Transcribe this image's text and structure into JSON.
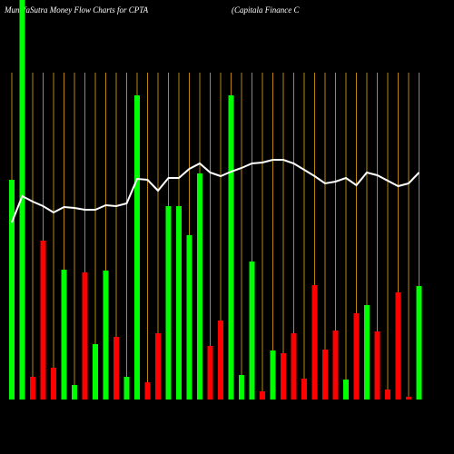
{
  "chart_data": {
    "type": "bar",
    "title": "MunafaSutra  Money Flow  Charts for CPTA",
    "subtitle": "(Capitala  Finance  C",
    "background": "#000000",
    "gridline_color": "#b8860b",
    "ylim": [
      0,
      440
    ],
    "values": [
      242,
      440,
      25,
      175,
      35,
      143,
      16,
      140,
      61,
      142,
      69,
      25,
      335,
      19,
      73,
      213,
      213,
      181,
      249,
      59,
      87,
      335,
      27,
      152,
      9,
      54,
      51,
      73,
      23,
      126,
      55,
      76,
      22,
      95,
      104,
      75,
      11,
      118,
      3,
      125
    ],
    "colors": [
      "#00ff00",
      "#00ff00",
      "#ff0000",
      "#ff0000",
      "#ff0000",
      "#00ff00",
      "#00ff00",
      "#ff0000",
      "#00ff00",
      "#00ff00",
      "#ff0000",
      "#00ff00",
      "#00ff00",
      "#ff0000",
      "#ff0000",
      "#00ff00",
      "#00ff00",
      "#00ff00",
      "#00ff00",
      "#ff0000",
      "#ff0000",
      "#00ff00",
      "#00ff00",
      "#00ff00",
      "#ff0000",
      "#00ff00",
      "#ff0000",
      "#ff0000",
      "#ff0000",
      "#ff0000",
      "#ff0000",
      "#ff0000",
      "#00ff00",
      "#ff0000",
      "#00ff00",
      "#ff0000",
      "#ff0000",
      "#ff0000",
      "#ff0000",
      "#00ff00"
    ],
    "line": {
      "color": "#ffffff",
      "values": [
        195,
        224,
        218,
        213,
        206,
        212,
        211,
        209,
        209,
        214,
        213,
        216,
        243,
        242,
        230,
        244,
        244,
        254,
        260,
        250,
        246,
        251,
        255,
        260,
        261,
        264,
        264,
        260,
        253,
        246,
        238,
        240,
        244,
        236,
        250,
        247,
        241,
        235,
        238,
        250
      ]
    }
  }
}
